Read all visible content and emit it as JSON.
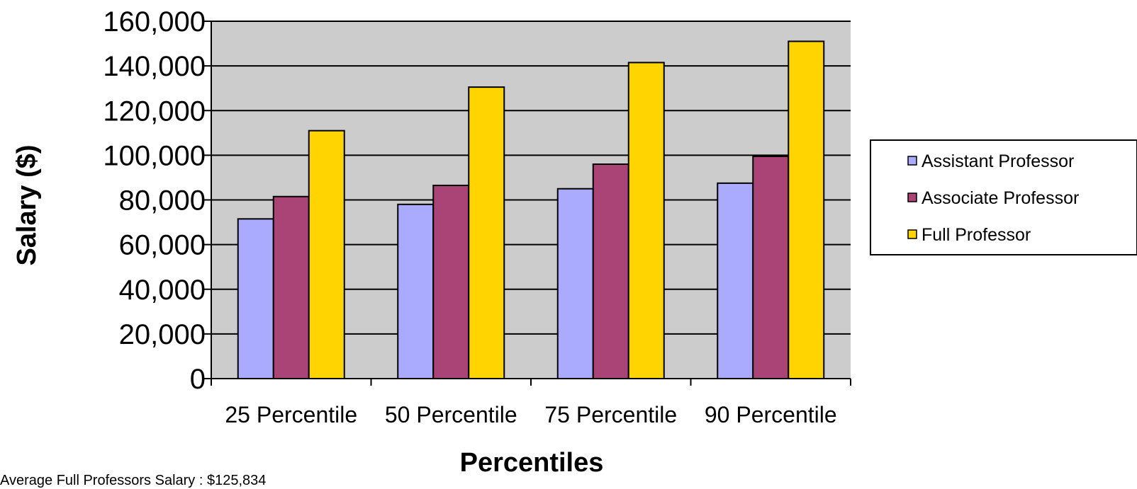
{
  "chart_data": {
    "type": "bar",
    "title": "",
    "xlabel": "Percentiles",
    "ylabel": "Salary ($)",
    "categories": [
      "25 Percentile",
      "50 Percentile",
      "75 Percentile",
      "90 Percentile"
    ],
    "series": [
      {
        "name": "Assistant Professor",
        "color": "#aaaaff",
        "values": [
          71500,
          78000,
          85000,
          87500
        ]
      },
      {
        "name": "Associate Professor",
        "color": "#aa4477",
        "values": [
          81500,
          86500,
          96000,
          99500
        ]
      },
      {
        "name": "Full Professor",
        "color": "#ffd400",
        "values": [
          111000,
          130500,
          141500,
          151000
        ]
      }
    ],
    "ylim": [
      0,
      160000
    ],
    "yticks": [
      0,
      20000,
      40000,
      60000,
      80000,
      100000,
      120000,
      140000,
      160000
    ],
    "ytick_labels": [
      "0",
      "20,000",
      "40,000",
      "60,000",
      "80,000",
      "100,000",
      "120,000",
      "140,000",
      "160,000"
    ],
    "grid": true,
    "plot_background": "#cccccc",
    "legend_position": "right"
  },
  "footnote": "Average Full Professors Salary : $125,834"
}
